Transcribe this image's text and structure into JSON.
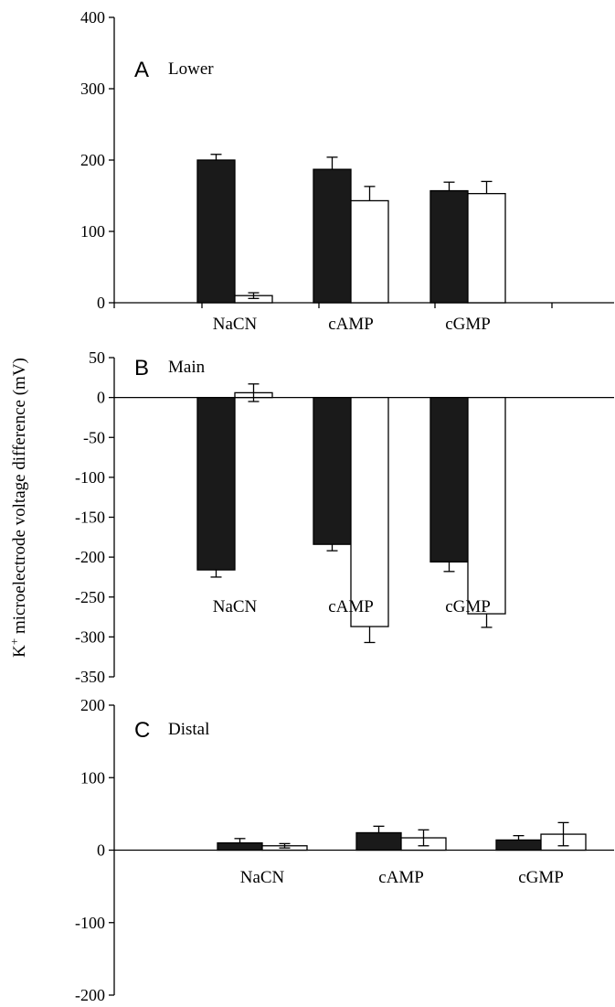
{
  "chart_data": [
    {
      "type": "bar",
      "panel_letter": "A",
      "title": "Lower",
      "categories": [
        "NaCN",
        "cAMP",
        "cGMP"
      ],
      "series": [
        {
          "fill": "#1a1a1a",
          "values": [
            200,
            187,
            157
          ],
          "errors": [
            8,
            17,
            12
          ]
        },
        {
          "fill": "#ffffff",
          "values": [
            10,
            143,
            153
          ],
          "errors": [
            4,
            20,
            17
          ]
        }
      ],
      "ylim": [
        0,
        400
      ],
      "yticks": [
        0,
        100,
        200,
        300,
        400
      ],
      "grid": false
    },
    {
      "type": "bar",
      "panel_letter": "B",
      "title": "Main",
      "categories": [
        "NaCN",
        "cAMP",
        "cGMP"
      ],
      "series": [
        {
          "fill": "#1a1a1a",
          "values": [
            -216,
            -184,
            -206
          ],
          "errors": [
            9,
            8,
            12
          ]
        },
        {
          "fill": "#ffffff",
          "values": [
            6,
            -287,
            -271
          ],
          "errors": [
            11,
            20,
            17
          ]
        }
      ],
      "ylim": [
        -350,
        50
      ],
      "yticks": [
        -350,
        -300,
        -250,
        -200,
        -150,
        -100,
        -50,
        0,
        50
      ],
      "grid": false
    },
    {
      "type": "bar",
      "panel_letter": "C",
      "title": "Distal",
      "categories": [
        "NaCN",
        "cAMP",
        "cGMP"
      ],
      "series": [
        {
          "fill": "#1a1a1a",
          "values": [
            10,
            24,
            14
          ],
          "errors": [
            6,
            9,
            6
          ]
        },
        {
          "fill": "#ffffff",
          "values": [
            6,
            17,
            22
          ],
          "errors": [
            3,
            11,
            16
          ]
        }
      ],
      "ylim": [
        -200,
        200
      ],
      "yticks": [
        -200,
        -100,
        0,
        100,
        200
      ],
      "grid": false
    }
  ],
  "ylabel_main": "K",
  "ylabel_sup": "+",
  "ylabel_rest": " microelectrode voltage difference (mV)"
}
